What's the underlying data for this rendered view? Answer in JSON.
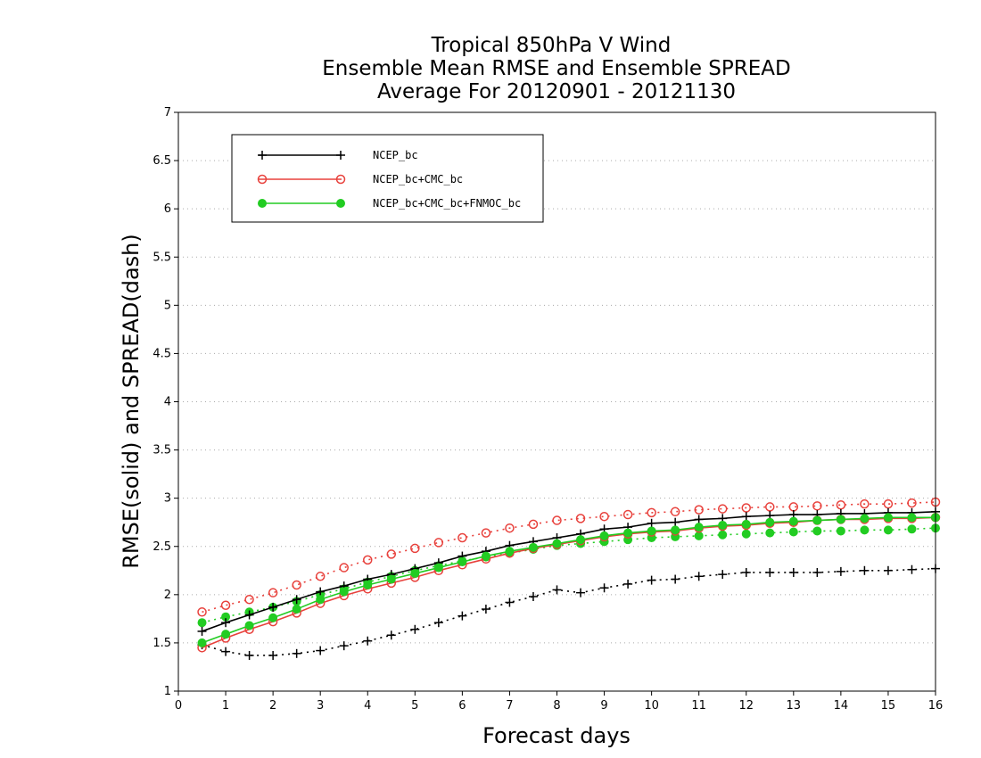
{
  "chart_data": {
    "type": "line",
    "title": [
      "Tropical 850hPa V Wind",
      "Ensemble Mean RMSE and Ensemble SPREAD",
      "Average For 20120901 - 20121130"
    ],
    "xlabel": "Forecast days",
    "ylabel": "RMSE(solid) and SPREAD(dash)",
    "xlim": [
      0,
      16
    ],
    "ylim": [
      1,
      7
    ],
    "xticks": [
      "0",
      "1",
      "2",
      "3",
      "4",
      "5",
      "6",
      "7",
      "8",
      "9",
      "10",
      "11",
      "12",
      "13",
      "14",
      "15",
      "16"
    ],
    "yticks": [
      "1",
      "1.5",
      "2",
      "2.5",
      "3",
      "3.5",
      "4",
      "4.5",
      "5",
      "5.5",
      "6",
      "6.5",
      "7"
    ],
    "grid": "horizontal dotted",
    "legend_position": "top-left",
    "x": [
      0.5,
      1,
      1.5,
      2,
      2.5,
      3,
      3.5,
      4,
      4.5,
      5,
      5.5,
      6,
      6.5,
      7,
      7.5,
      8,
      8.5,
      9,
      9.5,
      10,
      10.5,
      11,
      11.5,
      12,
      12.5,
      13,
      13.5,
      14,
      14.5,
      15,
      15.5,
      16
    ],
    "series": [
      {
        "name": "NCEP_bc",
        "color": "#000000",
        "marker": "plus",
        "rmse": [
          1.62,
          1.71,
          1.79,
          1.87,
          1.95,
          2.03,
          2.09,
          2.16,
          2.21,
          2.27,
          2.33,
          2.4,
          2.45,
          2.51,
          2.55,
          2.59,
          2.63,
          2.68,
          2.7,
          2.74,
          2.75,
          2.78,
          2.79,
          2.81,
          2.82,
          2.83,
          2.83,
          2.84,
          2.84,
          2.85,
          2.85,
          2.86
        ],
        "spread": [
          1.48,
          1.41,
          1.37,
          1.37,
          1.39,
          1.42,
          1.47,
          1.52,
          1.58,
          1.64,
          1.71,
          1.78,
          1.85,
          1.92,
          1.98,
          2.05,
          2.02,
          2.07,
          2.11,
          2.15,
          2.16,
          2.19,
          2.21,
          2.23,
          2.23,
          2.23,
          2.23,
          2.24,
          2.25,
          2.25,
          2.26,
          2.27
        ]
      },
      {
        "name": "NCEP_bc+CMC_bc",
        "color": "#e8413c",
        "marker": "open-circle",
        "rmse": [
          1.45,
          1.55,
          1.64,
          1.72,
          1.81,
          1.91,
          1.99,
          2.06,
          2.12,
          2.18,
          2.25,
          2.31,
          2.37,
          2.43,
          2.48,
          2.52,
          2.56,
          2.6,
          2.63,
          2.65,
          2.66,
          2.69,
          2.71,
          2.72,
          2.74,
          2.75,
          2.77,
          2.78,
          2.78,
          2.79,
          2.79,
          2.8
        ],
        "spread": [
          1.82,
          1.89,
          1.95,
          2.02,
          2.1,
          2.19,
          2.28,
          2.36,
          2.42,
          2.48,
          2.54,
          2.59,
          2.64,
          2.69,
          2.73,
          2.77,
          2.79,
          2.81,
          2.83,
          2.85,
          2.86,
          2.88,
          2.89,
          2.9,
          2.91,
          2.91,
          2.92,
          2.93,
          2.94,
          2.94,
          2.95,
          2.96
        ]
      },
      {
        "name": "NCEP_bc+CMC_bc+FNMOC_bc",
        "color": "#22cc22",
        "marker": "filled-circle",
        "rmse": [
          1.5,
          1.59,
          1.68,
          1.76,
          1.85,
          1.95,
          2.03,
          2.1,
          2.16,
          2.22,
          2.28,
          2.34,
          2.4,
          2.45,
          2.49,
          2.53,
          2.57,
          2.61,
          2.64,
          2.66,
          2.67,
          2.7,
          2.72,
          2.73,
          2.75,
          2.76,
          2.77,
          2.78,
          2.79,
          2.8,
          2.8,
          2.8
        ],
        "spread": [
          1.71,
          1.77,
          1.82,
          1.87,
          1.93,
          2.0,
          2.06,
          2.13,
          2.19,
          2.25,
          2.3,
          2.35,
          2.39,
          2.43,
          2.47,
          2.51,
          2.53,
          2.55,
          2.57,
          2.59,
          2.6,
          2.61,
          2.62,
          2.63,
          2.64,
          2.65,
          2.66,
          2.66,
          2.67,
          2.67,
          2.68,
          2.69
        ]
      }
    ]
  }
}
